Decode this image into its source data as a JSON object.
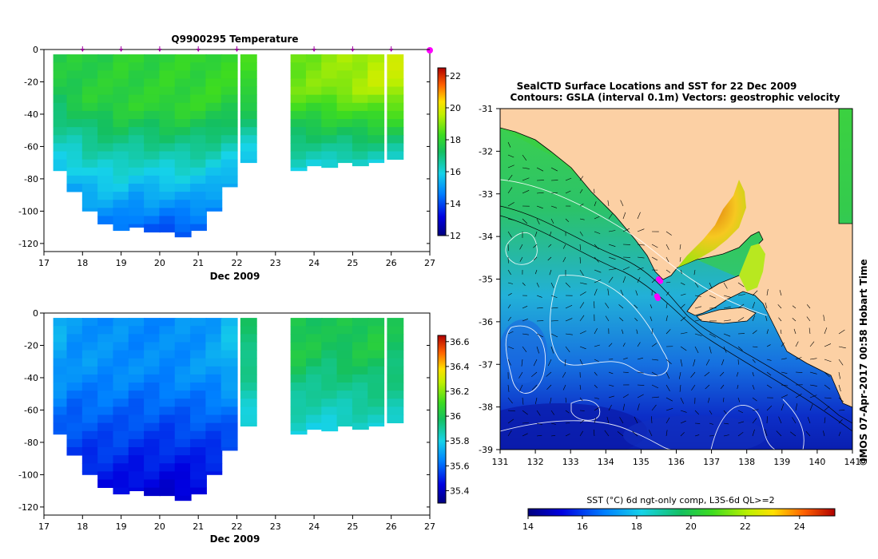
{
  "chart_data": [
    {
      "type": "heatmap",
      "title": "Q9900295  Temperature",
      "xlabel": "Dec 2009",
      "ylabel": "",
      "xlim": [
        17,
        27
      ],
      "ylim": [
        -125,
        0
      ],
      "x_ticks": [
        "17",
        "18",
        "19",
        "20",
        "21",
        "22",
        "23",
        "24",
        "25",
        "26",
        "27"
      ],
      "y_ticks": [
        "0",
        "-20",
        "-40",
        "-60",
        "-80",
        "-100",
        "-120"
      ],
      "profile_markers_x": [
        18.0,
        19.0,
        20.0,
        21.0,
        22.0,
        24.0,
        25.0,
        26.0,
        27.0
      ],
      "colorbar": {
        "min": 12,
        "max": 22.5,
        "ticks": [
          "12",
          "14",
          "16",
          "18",
          "20",
          "22"
        ]
      },
      "profiles": [
        {
          "x": 17.45,
          "bottom": -75,
          "top_val": 17.6,
          "bottom_val": 15.6
        },
        {
          "x": 17.8,
          "bottom": -88,
          "top_val": 17.7,
          "bottom_val": 15.0
        },
        {
          "x": 18.2,
          "bottom": -100,
          "top_val": 17.8,
          "bottom_val": 14.8
        },
        {
          "x": 18.6,
          "bottom": -108,
          "top_val": 17.8,
          "bottom_val": 14.5
        },
        {
          "x": 19.0,
          "bottom": -112,
          "top_val": 17.9,
          "bottom_val": 14.3
        },
        {
          "x": 19.4,
          "bottom": -110,
          "top_val": 17.9,
          "bottom_val": 14.1
        },
        {
          "x": 19.8,
          "bottom": -113,
          "top_val": 17.9,
          "bottom_val": 14.0
        },
        {
          "x": 20.2,
          "bottom": -113,
          "top_val": 18.0,
          "bottom_val": 13.9
        },
        {
          "x": 20.6,
          "bottom": -116,
          "top_val": 18.0,
          "bottom_val": 13.8
        },
        {
          "x": 21.0,
          "bottom": -112,
          "top_val": 18.0,
          "bottom_val": 14.0
        },
        {
          "x": 21.4,
          "bottom": -100,
          "top_val": 18.1,
          "bottom_val": 14.4
        },
        {
          "x": 21.8,
          "bottom": -85,
          "top_val": 18.1,
          "bottom_val": 14.9
        },
        {
          "x": 22.3,
          "bottom": -70,
          "top_val": 18.2,
          "bottom_val": 15.4
        },
        {
          "x": 23.6,
          "bottom": -75,
          "top_val": 18.8,
          "bottom_val": 15.8
        },
        {
          "x": 24.0,
          "bottom": -72,
          "top_val": 18.9,
          "bottom_val": 15.9
        },
        {
          "x": 24.4,
          "bottom": -73,
          "top_val": 19.0,
          "bottom_val": 15.9
        },
        {
          "x": 24.8,
          "bottom": -70,
          "top_val": 19.2,
          "bottom_val": 16.0
        },
        {
          "x": 25.2,
          "bottom": -72,
          "top_val": 19.3,
          "bottom_val": 15.9
        },
        {
          "x": 25.6,
          "bottom": -70,
          "top_val": 19.5,
          "bottom_val": 16.0
        },
        {
          "x": 26.1,
          "bottom": -68,
          "top_val": 19.6,
          "bottom_val": 16.0
        }
      ]
    },
    {
      "type": "heatmap",
      "title": "",
      "xlabel": "Dec 2009",
      "ylabel": "",
      "xlim": [
        17,
        27
      ],
      "ylim": [
        -125,
        0
      ],
      "x_ticks": [
        "17",
        "18",
        "19",
        "20",
        "21",
        "22",
        "23",
        "24",
        "25",
        "26",
        "27"
      ],
      "y_ticks": [
        "0",
        "-20",
        "-40",
        "-60",
        "-80",
        "-100",
        "-120"
      ],
      "colorbar": {
        "min": 35.3,
        "max": 36.65,
        "ticks": [
          "35.4",
          "35.6",
          "35.8",
          "36",
          "36.2",
          "36.4",
          "36.6"
        ]
      },
      "profiles": [
        {
          "x": 17.45,
          "bottom": -75,
          "top_val": 35.72,
          "bottom_val": 35.58
        },
        {
          "x": 17.8,
          "bottom": -88,
          "top_val": 35.68,
          "bottom_val": 35.52
        },
        {
          "x": 18.2,
          "bottom": -100,
          "top_val": 35.68,
          "bottom_val": 35.48
        },
        {
          "x": 18.6,
          "bottom": -108,
          "top_val": 35.67,
          "bottom_val": 35.46
        },
        {
          "x": 19.0,
          "bottom": -112,
          "top_val": 35.67,
          "bottom_val": 35.44
        },
        {
          "x": 19.4,
          "bottom": -110,
          "top_val": 35.66,
          "bottom_val": 35.43
        },
        {
          "x": 19.8,
          "bottom": -113,
          "top_val": 35.66,
          "bottom_val": 35.42
        },
        {
          "x": 20.2,
          "bottom": -113,
          "top_val": 35.66,
          "bottom_val": 35.41
        },
        {
          "x": 20.6,
          "bottom": -116,
          "top_val": 35.67,
          "bottom_val": 35.4
        },
        {
          "x": 21.0,
          "bottom": -112,
          "top_val": 35.68,
          "bottom_val": 35.42
        },
        {
          "x": 21.4,
          "bottom": -100,
          "top_val": 35.7,
          "bottom_val": 35.46
        },
        {
          "x": 21.8,
          "bottom": -85,
          "top_val": 35.75,
          "bottom_val": 35.52
        },
        {
          "x": 22.3,
          "bottom": -70,
          "top_val": 35.95,
          "bottom_val": 35.8
        },
        {
          "x": 23.6,
          "bottom": -75,
          "top_val": 36.02,
          "bottom_val": 35.8
        },
        {
          "x": 24.0,
          "bottom": -72,
          "top_val": 36.0,
          "bottom_val": 35.8
        },
        {
          "x": 24.4,
          "bottom": -73,
          "top_val": 35.98,
          "bottom_val": 35.8
        },
        {
          "x": 24.8,
          "bottom": -70,
          "top_val": 36.0,
          "bottom_val": 35.82
        },
        {
          "x": 25.2,
          "bottom": -72,
          "top_val": 36.01,
          "bottom_val": 35.82
        },
        {
          "x": 25.6,
          "bottom": -70,
          "top_val": 36.02,
          "bottom_val": 35.83
        },
        {
          "x": 26.1,
          "bottom": -68,
          "top_val": 35.98,
          "bottom_val": 35.84
        }
      ]
    },
    {
      "type": "heatmap",
      "title": "SealCTD Surface Locations and SST for 22 Dec 2009",
      "subtitle": "Contours: GSLA (interval 0.1m) Vectors: geostrophic velocity",
      "xlim": [
        131,
        141
      ],
      "ylim": [
        -39,
        -31
      ],
      "x_ticks": [
        "131",
        "132",
        "133",
        "134",
        "135",
        "136",
        "137",
        "138",
        "139",
        "140",
        "141"
      ],
      "y_ticks": [
        "-31",
        "-32",
        "-33",
        "-34",
        "-35",
        "-36",
        "-37",
        "-38",
        "-39"
      ],
      "colorbar": {
        "label": "SST (°C) 6d ngt-only comp, L3S-6d QL>=2",
        "min": 14,
        "max": 25.3,
        "ticks": [
          "14",
          "16",
          "18",
          "20",
          "22",
          "24"
        ]
      },
      "seal_locations": [
        [
          135.5,
          -35.0
        ],
        [
          135.55,
          -35.05
        ],
        [
          135.45,
          -35.4
        ],
        [
          135.48,
          -35.45
        ]
      ],
      "side_label": "IMOS 07-Apr-2017 00:58 Hobart Time",
      "copyright": "©"
    }
  ],
  "colors": {
    "land": "#fcd0a4",
    "marker": "#ff00ff",
    "marker_arrow": "#9b009b"
  }
}
